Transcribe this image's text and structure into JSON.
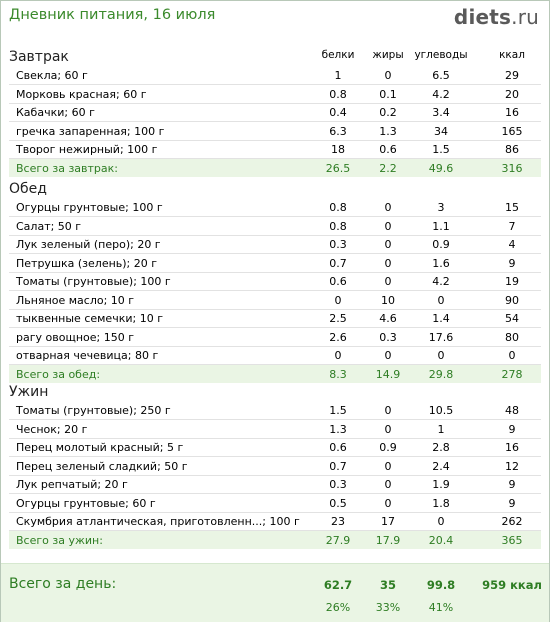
{
  "header": {
    "title": "Дневник питания, 16 июля",
    "logo_main": "diets",
    "logo_dot": ".",
    "logo_tld": "ru"
  },
  "columns": {
    "protein": "белки",
    "fat": "жиры",
    "carbs": "углеводы",
    "kcal": "ккал"
  },
  "sections": [
    {
      "name": "Завтрак",
      "rows": [
        {
          "name": "Свекла; 60 г",
          "p": "1",
          "f": "0",
          "c": "6.5",
          "k": "29"
        },
        {
          "name": "Морковь красная; 60 г",
          "p": "0.8",
          "f": "0.1",
          "c": "4.2",
          "k": "20"
        },
        {
          "name": "Кабачки; 60 г",
          "p": "0.4",
          "f": "0.2",
          "c": "3.4",
          "k": "16"
        },
        {
          "name": "гречка запаренная; 100 г",
          "p": "6.3",
          "f": "1.3",
          "c": "34",
          "k": "165"
        },
        {
          "name": "Творог нежирный; 100 г",
          "p": "18",
          "f": "0.6",
          "c": "1.5",
          "k": "86"
        }
      ],
      "total": {
        "name": "Всего за завтрак:",
        "p": "26.5",
        "f": "2.2",
        "c": "49.6",
        "k": "316"
      }
    },
    {
      "name": "Обед",
      "rows": [
        {
          "name": "Огурцы грунтовые; 100 г",
          "p": "0.8",
          "f": "0",
          "c": "3",
          "k": "15"
        },
        {
          "name": "Салат; 50 г",
          "p": "0.8",
          "f": "0",
          "c": "1.1",
          "k": "7"
        },
        {
          "name": "Лук зеленый (перо); 20 г",
          "p": "0.3",
          "f": "0",
          "c": "0.9",
          "k": "4"
        },
        {
          "name": "Петрушка (зелень); 20 г",
          "p": "0.7",
          "f": "0",
          "c": "1.6",
          "k": "9"
        },
        {
          "name": "Томаты (грунтовые); 100 г",
          "p": "0.6",
          "f": "0",
          "c": "4.2",
          "k": "19"
        },
        {
          "name": "Льняное масло; 10 г",
          "p": "0",
          "f": "10",
          "c": "0",
          "k": "90"
        },
        {
          "name": "тыквенные семечки; 10 г",
          "p": "2.5",
          "f": "4.6",
          "c": "1.4",
          "k": "54"
        },
        {
          "name": "рагу овощное; 150 г",
          "p": "2.6",
          "f": "0.3",
          "c": "17.6",
          "k": "80"
        },
        {
          "name": "отварная чечевица; 80 г",
          "p": "0",
          "f": "0",
          "c": "0",
          "k": "0"
        }
      ],
      "total": {
        "name": "Всего за обед:",
        "p": "8.3",
        "f": "14.9",
        "c": "29.8",
        "k": "278"
      }
    },
    {
      "name": "Ужин",
      "rows": [
        {
          "name": "Томаты (грунтовые); 250 г",
          "p": "1.5",
          "f": "0",
          "c": "10.5",
          "k": "48"
        },
        {
          "name": "Чеснок; 20 г",
          "p": "1.3",
          "f": "0",
          "c": "1",
          "k": "9"
        },
        {
          "name": "Перец молотый красный; 5 г",
          "p": "0.6",
          "f": "0.9",
          "c": "2.8",
          "k": "16"
        },
        {
          "name": "Перец зеленый сладкий; 50 г",
          "p": "0.7",
          "f": "0",
          "c": "2.4",
          "k": "12"
        },
        {
          "name": "Лук репчатый; 20 г",
          "p": "0.3",
          "f": "0",
          "c": "1.9",
          "k": "9"
        },
        {
          "name": "Огурцы грунтовые; 60 г",
          "p": "0.5",
          "f": "0",
          "c": "1.8",
          "k": "9"
        },
        {
          "name": "Скумбрия атлантическая, приготовленн...; 100 г",
          "p": "23",
          "f": "17",
          "c": "0",
          "k": "262"
        }
      ],
      "total": {
        "name": "Всего за ужин:",
        "p": "27.9",
        "f": "17.9",
        "c": "20.4",
        "k": "365"
      }
    }
  ],
  "day_total": {
    "name": "Всего за день:",
    "p": "62.7",
    "f": "35",
    "c": "99.8",
    "k": "959 ккал",
    "p_pct": "26%",
    "f_pct": "33%",
    "c_pct": "41%"
  }
}
